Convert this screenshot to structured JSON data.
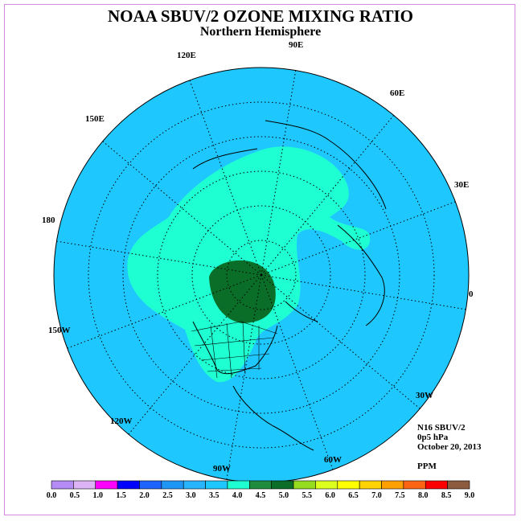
{
  "title": "NOAA SBUV/2 OZONE MIXING RATIO",
  "subtitle": "Northern Hemisphere",
  "longitude_labels": [
    "90E",
    "60E",
    "30E",
    "0",
    "30W",
    "60W",
    "90W",
    "120W",
    "150W",
    "180",
    "150E",
    "120E"
  ],
  "info": {
    "satellite": "N16 SBUV/2",
    "level": "0p5 hPa",
    "date": "October 20, 2013",
    "units": "PPM"
  },
  "colorbar": {
    "ticks": [
      "0.0",
      "0.5",
      "1.0",
      "1.5",
      "2.0",
      "2.5",
      "3.0",
      "3.5",
      "4.0",
      "4.5",
      "5.0",
      "5.5",
      "6.0",
      "6.5",
      "7.0",
      "7.5",
      "8.0",
      "8.5",
      "9.0"
    ],
    "colors": [
      "#b58cf5",
      "#dcb4f5",
      "#ff00ff",
      "#0000ff",
      "#1e64ff",
      "#1e96f5",
      "#28b4ff",
      "#1ec8ff",
      "#1effd2",
      "#1e8c3c",
      "#0a6e28",
      "#96dc1e",
      "#dcff1e",
      "#ffff00",
      "#ffd200",
      "#ffa000",
      "#ff6414",
      "#ff0000",
      "#8c5a3c"
    ]
  },
  "map_legend": {
    "background_range": "3.0-3.5",
    "light_region_range": "3.5-4.0",
    "dark_region_range": "4.5-5.0"
  }
}
